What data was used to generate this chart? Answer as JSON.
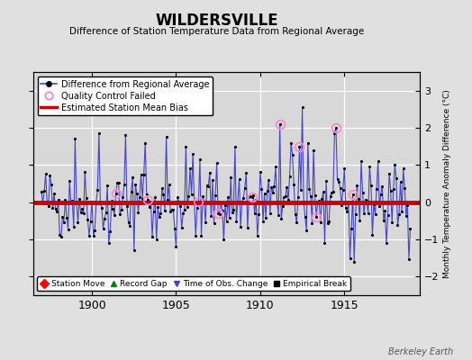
{
  "title": "WILDERSVILLE",
  "subtitle": "Difference of Station Temperature Data from Regional Average",
  "ylabel": "Monthly Temperature Anomaly Difference (°C)",
  "bias": 0.0,
  "ylim": [
    -2.5,
    3.5
  ],
  "xlim": [
    1896.5,
    1919.5
  ],
  "xticks": [
    1900,
    1905,
    1910,
    1915
  ],
  "yticks": [
    -2,
    -1,
    0,
    1,
    2,
    3
  ],
  "bg_color": "#e0e0e0",
  "plot_bg_color": "#d8d8d8",
  "line_color": "#4444cc",
  "dot_color": "#111111",
  "bias_color": "#cc0000",
  "qc_color": "#ff88cc",
  "watermark": "Berkeley Earth",
  "start_year": 1897.0,
  "n_months": 264,
  "seed": 42,
  "qc_times": [
    1901.4,
    1903.3,
    1906.3,
    1907.5,
    1909.5,
    1911.2,
    1912.3,
    1913.3,
    1914.5,
    1915.5
  ]
}
